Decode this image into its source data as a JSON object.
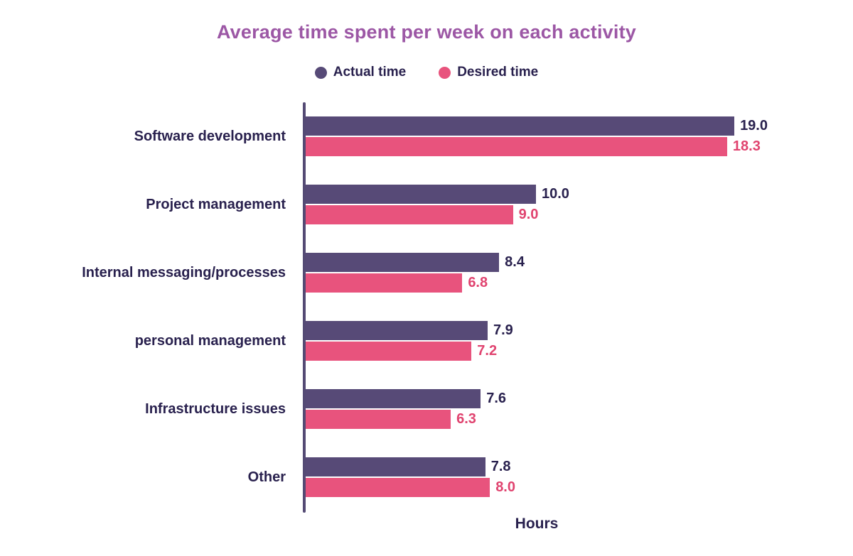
{
  "title": "Average time spent per week on each activity",
  "colors": {
    "title": "#9c57a5",
    "text": "#29214e",
    "axis": "#544a74",
    "actual": "#574a77",
    "desired": "#e8537d",
    "desired_text": "#e0436f"
  },
  "legend": {
    "actual_label": "Actual time",
    "desired_label": "Desired time"
  },
  "xlabel": "Hours",
  "chart_data": {
    "type": "bar",
    "orientation": "horizontal",
    "title": "Average time spent per week on each activity",
    "xlabel": "Hours",
    "ylabel": "",
    "xlim": [
      0,
      20
    ],
    "grid": false,
    "legend_position": "top",
    "categories": [
      "Software development",
      "Project management",
      "Internal messaging/processes",
      "personal management",
      "Infrastructure issues",
      "Other"
    ],
    "series": [
      {
        "name": "Actual time",
        "color": "#574a77",
        "values": [
          19.0,
          10.0,
          8.4,
          7.9,
          7.6,
          7.8
        ]
      },
      {
        "name": "Desired time",
        "color": "#e8537d",
        "values": [
          18.3,
          9.0,
          6.8,
          7.2,
          6.3,
          8.0
        ]
      }
    ]
  }
}
